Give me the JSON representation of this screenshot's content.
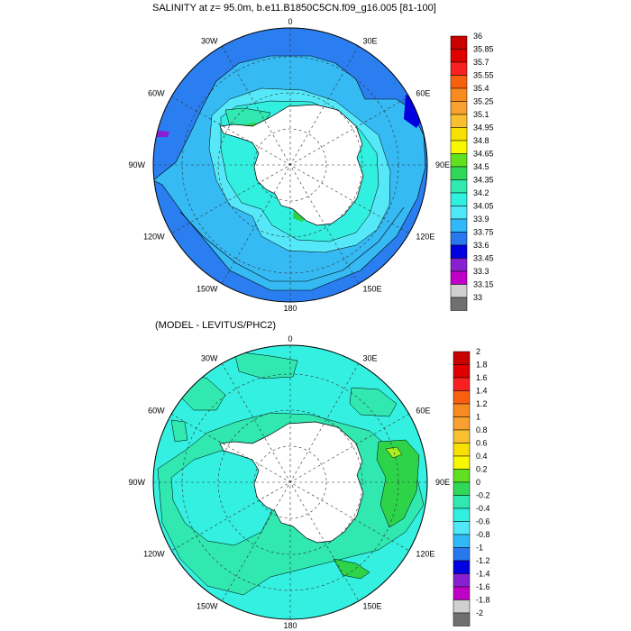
{
  "panel1": {
    "title": "SALINITY at z=  95.0m, b.e11.B1850C5CN.f09_g16.005 [81-100]",
    "lon_labels": [
      "0",
      "30E",
      "60E",
      "90E",
      "120E",
      "150E",
      "180",
      "150W",
      "120W",
      "90W",
      "60W",
      "30W"
    ],
    "colorbar": {
      "labels": [
        "36",
        "35.85",
        "35.7",
        "35.55",
        "35.4",
        "35.25",
        "35.1",
        "34.95",
        "34.8",
        "34.65",
        "34.5",
        "34.35",
        "34.2",
        "34.05",
        "33.9",
        "33.75",
        "33.6",
        "33.45",
        "33.3",
        "33.15",
        "33"
      ],
      "colors": [
        "#c80000",
        "#e00000",
        "#f82020",
        "#f86010",
        "#f88a20",
        "#f8a030",
        "#f8c030",
        "#f8e000",
        "#f8f800",
        "#60e020",
        "#30d858",
        "#30e8b0",
        "#30f0e0",
        "#50e8f8",
        "#30b8f8",
        "#2878f0",
        "#0000e0",
        "#8820d0",
        "#c000c8",
        "#d0d0d0",
        "#707070"
      ]
    }
  },
  "panel2": {
    "title": "(MODEL - LEVITUS/PHC2)",
    "lon_labels": [
      "0",
      "30E",
      "60E",
      "90E",
      "120E",
      "150E",
      "180",
      "150W",
      "120W",
      "90W",
      "60W",
      "30W"
    ],
    "colorbar": {
      "labels": [
        "2",
        "1.8",
        "1.6",
        "1.4",
        "1.2",
        "1",
        "0.8",
        "0.6",
        "0.4",
        "0.2",
        "0",
        "-0.2",
        "-0.4",
        "-0.6",
        "-0.8",
        "-1",
        "-1.2",
        "-1.4",
        "-1.6",
        "-1.8",
        "-2"
      ],
      "colors": [
        "#c80000",
        "#e00000",
        "#f82020",
        "#f86010",
        "#f88a20",
        "#f8a030",
        "#f8c030",
        "#f8e000",
        "#f8f800",
        "#60e020",
        "#30d858",
        "#30e8b0",
        "#30f0e0",
        "#50e8f8",
        "#30b8f8",
        "#2878f0",
        "#0000e0",
        "#8820d0",
        "#c000c8",
        "#d0d0d0",
        "#707070"
      ]
    }
  }
}
